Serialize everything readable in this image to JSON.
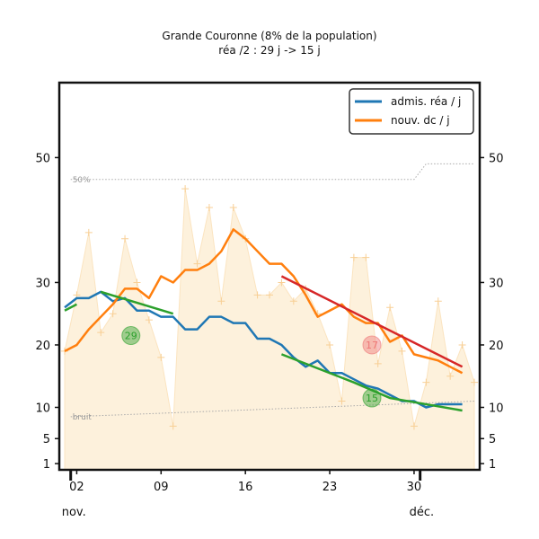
{
  "chart_data": {
    "type": "line",
    "title": "Grande Couronne (8% de la population)",
    "subtitle": "réa /2 : 29 j -> 15 j",
    "yticks": [
      1,
      5,
      10,
      20,
      30,
      50
    ],
    "ylim": [
      0,
      62
    ],
    "xlim": [
      0,
      34
    ],
    "xticks": [
      {
        "x": 1,
        "label": "02"
      },
      {
        "x": 8,
        "label": "09"
      },
      {
        "x": 15,
        "label": "16"
      },
      {
        "x": 22,
        "label": "23"
      },
      {
        "x": 29,
        "label": "30"
      }
    ],
    "month_labels": [
      {
        "x": 0.5,
        "label": "nov."
      },
      {
        "x": 29.5,
        "label": "déc."
      }
    ],
    "legend": {
      "position": "top-right",
      "entries": [
        {
          "label": "admis. réa / j",
          "color": "#1f77b4"
        },
        {
          "label": "nouv. dc / j",
          "color": "#ff7f0e"
        }
      ]
    },
    "reference_lines": [
      {
        "label": "50%",
        "color": "#aaaaaa",
        "points": [
          [
            0.5,
            46.5
          ],
          [
            29,
            46.5
          ],
          [
            30,
            49
          ],
          [
            34,
            49
          ]
        ]
      },
      {
        "label": "bruit",
        "color": "#aaaaaa",
        "points": [
          [
            0.5,
            8.5
          ],
          [
            34,
            11
          ]
        ]
      }
    ],
    "daily_deaths": [
      19,
      28,
      38,
      22,
      25,
      37,
      30,
      24,
      18,
      7,
      45,
      33,
      42,
      27,
      42,
      37,
      28,
      28,
      30,
      27,
      29,
      25,
      20,
      11,
      34,
      34,
      17,
      26,
      19,
      7,
      14,
      27,
      15,
      20,
      14
    ],
    "series": [
      {
        "name": "admis. réa / j",
        "color": "#1f77b4",
        "x": [
          0,
          1,
          2,
          3,
          4,
          5,
          6,
          7,
          8,
          9,
          10,
          11,
          12,
          13,
          14,
          15,
          16,
          17,
          18,
          19,
          20,
          21,
          22,
          23,
          24,
          25,
          26,
          27,
          28,
          29,
          30,
          31,
          32,
          33
        ],
        "values": [
          26,
          27.5,
          27.5,
          28.5,
          27,
          27.5,
          25.5,
          25.5,
          24.5,
          24.5,
          22.5,
          22.5,
          24.5,
          24.5,
          23.5,
          23.5,
          21,
          21,
          20,
          18,
          16.5,
          17.5,
          15.5,
          15.5,
          14.5,
          13.5,
          13,
          12,
          11,
          11,
          10,
          10.5,
          10.5,
          10.5
        ]
      },
      {
        "name": "nouv. dc / j",
        "color": "#ff7f0e",
        "x": [
          0,
          1,
          2,
          3,
          4,
          5,
          6,
          7,
          8,
          9,
          10,
          11,
          12,
          13,
          14,
          15,
          16,
          17,
          18,
          19,
          20,
          21,
          22,
          23,
          24,
          25,
          26,
          27,
          28,
          29,
          30,
          31,
          32,
          33
        ],
        "values": [
          19,
          20,
          22.5,
          24.5,
          26.5,
          29,
          29,
          27.5,
          31,
          30,
          32,
          32,
          33,
          35,
          38.5,
          37,
          35,
          33,
          33,
          31,
          28,
          24.5,
          25.5,
          26.5,
          24.5,
          23.5,
          23.5,
          20.5,
          21.5,
          18.5,
          18,
          17.5,
          16.5,
          15.5
        ]
      }
    ],
    "trends": [
      {
        "label": "29",
        "color": "#2ca02c",
        "badge_color": "#2ca02c",
        "points": [
          [
            0,
            25.5
          ],
          [
            1,
            26.5
          ]
        ],
        "badge": [
          5.5,
          21.5
        ]
      },
      {
        "label": "29",
        "color": "#2ca02c",
        "badge_color": "#2ca02c",
        "points": [
          [
            3,
            28.5
          ],
          [
            9,
            25
          ]
        ],
        "badge": [
          5.5,
          21.5
        ]
      },
      {
        "label": "15",
        "color": "#2ca02c",
        "badge_color": "#2ca02c",
        "points": [
          [
            18,
            18.5
          ],
          [
            24,
            14
          ],
          [
            27,
            11.5
          ],
          [
            33,
            9.5
          ]
        ],
        "badge": [
          25.5,
          11.5
        ]
      },
      {
        "label": "17",
        "color": "#d62728",
        "badge_color": "#ee7777",
        "points": [
          [
            18,
            31
          ],
          [
            33,
            16.5
          ]
        ],
        "badge": [
          25.5,
          20
        ]
      }
    ]
  }
}
